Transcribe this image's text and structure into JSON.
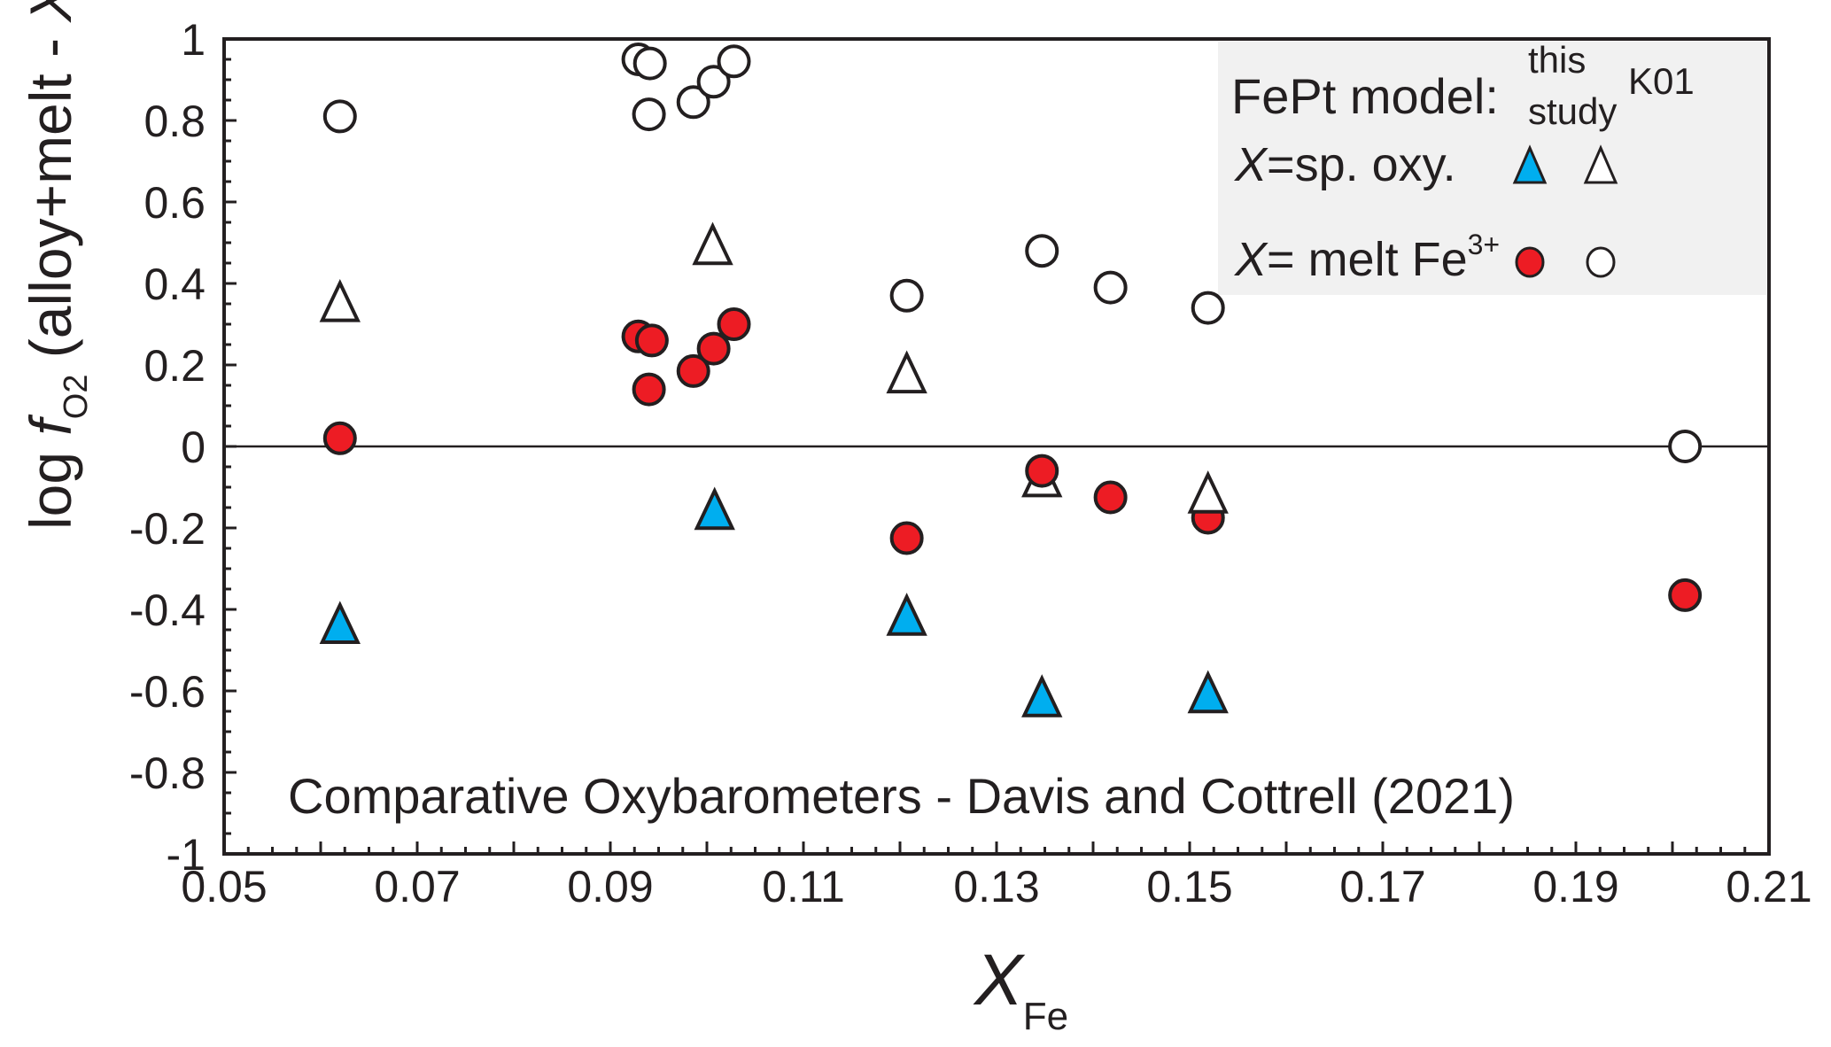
{
  "chart_data": {
    "type": "scatter",
    "title": "",
    "annotation": "Comparative Oxybarometers - Davis and Cottrell (2021)",
    "xlabel": {
      "main": "X",
      "sub": "Fe"
    },
    "ylabel": {
      "prefix": "log ",
      "f": "f",
      "sub": "O2",
      "suffix": " (alloy+melt - ",
      "x": "X",
      "close": ")"
    },
    "xlim": [
      0.05,
      0.21
    ],
    "ylim": [
      -1,
      1
    ],
    "xticks": [
      "0.05",
      "0.07",
      "0.09",
      "0.11",
      "0.13",
      "0.15",
      "0.17",
      "0.19",
      "0.21"
    ],
    "xtick_values": [
      0.05,
      0.07,
      0.09,
      0.11,
      0.13,
      0.15,
      0.17,
      0.19,
      0.21
    ],
    "yticks": [
      "1",
      "0.8",
      "0.6",
      "0.4",
      "0.2",
      "0",
      "-0.2",
      "-0.4",
      "-0.6",
      "-0.8",
      "-1"
    ],
    "ytick_values": [
      1,
      0.8,
      0.6,
      0.4,
      0.2,
      0,
      -0.2,
      -0.4,
      -0.6,
      -0.8,
      -1
    ],
    "x_minor_step": 0.0025,
    "y_minor_step": 0.05,
    "reference_line_y": 0,
    "grid": false,
    "legend": {
      "position": "top-right",
      "header": "FePt model:",
      "col1": {
        "line1": "this",
        "line2": "study"
      },
      "col2": "K01",
      "rows": [
        {
          "x_label": "X",
          "text": "=sp. oxy.",
          "sup": ""
        },
        {
          "x_label": "X",
          "text": "= melt Fe",
          "sup": "3+"
        }
      ]
    },
    "series": [
      {
        "name": "X=sp. oxy. (this study)",
        "marker": "triangle",
        "fill": "#00aeef",
        "points": [
          {
            "x": 0.062,
            "y": -0.45
          },
          {
            "x": 0.1008,
            "y": -0.17
          },
          {
            "x": 0.1207,
            "y": -0.43
          },
          {
            "x": 0.1347,
            "y": -0.63
          },
          {
            "x": 0.1519,
            "y": -0.62
          }
        ]
      },
      {
        "name": "X=sp. oxy. (K01)",
        "marker": "triangle",
        "fill": "#ffffff",
        "points": [
          {
            "x": 0.062,
            "y": 0.34
          },
          {
            "x": 0.1006,
            "y": 0.48
          },
          {
            "x": 0.1207,
            "y": 0.165
          },
          {
            "x": 0.1347,
            "y": -0.09
          },
          {
            "x": 0.1519,
            "y": -0.13
          }
        ]
      },
      {
        "name": "X= melt Fe3+ (this study)",
        "marker": "circle",
        "fill": "#ed1c24",
        "points": [
          {
            "x": 0.062,
            "y": 0.02
          },
          {
            "x": 0.0929,
            "y": 0.27
          },
          {
            "x": 0.0943,
            "y": 0.26
          },
          {
            "x": 0.094,
            "y": 0.14
          },
          {
            "x": 0.0986,
            "y": 0.185
          },
          {
            "x": 0.1007,
            "y": 0.24
          },
          {
            "x": 0.1028,
            "y": 0.3
          },
          {
            "x": 0.1207,
            "y": -0.225
          },
          {
            "x": 0.1347,
            "y": -0.06
          },
          {
            "x": 0.1418,
            "y": -0.125
          },
          {
            "x": 0.1519,
            "y": -0.175
          },
          {
            "x": 0.2013,
            "y": -0.365
          }
        ]
      },
      {
        "name": "X= melt Fe3+ (K01)",
        "marker": "circle",
        "fill": "#ffffff",
        "points": [
          {
            "x": 0.062,
            "y": 0.81
          },
          {
            "x": 0.0929,
            "y": 0.95
          },
          {
            "x": 0.0941,
            "y": 0.94
          },
          {
            "x": 0.094,
            "y": 0.815
          },
          {
            "x": 0.0986,
            "y": 0.845
          },
          {
            "x": 0.1007,
            "y": 0.895
          },
          {
            "x": 0.1028,
            "y": 0.945
          },
          {
            "x": 0.1207,
            "y": 0.37
          },
          {
            "x": 0.1347,
            "y": 0.48
          },
          {
            "x": 0.1418,
            "y": 0.39
          },
          {
            "x": 0.1519,
            "y": 0.34
          },
          {
            "x": 0.2013,
            "y": 0.0
          }
        ]
      }
    ],
    "colors": {
      "axis": "#231f20",
      "legend_bg": "#f1f1f1"
    }
  }
}
